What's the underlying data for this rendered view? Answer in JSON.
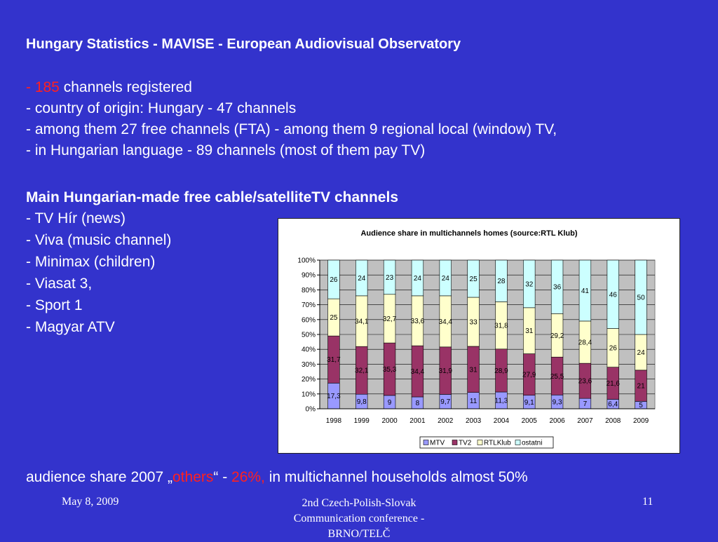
{
  "title": "Hungary Statistics - MAVISE - European Audiovisual Observatory",
  "bullets": {
    "l1_dash": "- ",
    "l1_num": "185",
    "l1_rest": " channels registered",
    "l2": "- country of origin: Hungary - 47 channels",
    "l3": "- among them 27 free channels (FTA) - among them 9 regional local (window) TV,",
    "l4": "- in Hungarian language - 89 channels (most of them pay TV)"
  },
  "channels": {
    "heading": "Main Hungarian-made free cable/satelliteTV channels",
    "items": [
      "- TV Hír (news)",
      "- Viva (music channel)",
      "- Minimax (children)",
      "- Viasat 3,",
      "- Sport 1",
      "- Magyar ATV"
    ]
  },
  "summary": {
    "prefix": "audience share 2007  „",
    "others": "others",
    "mid": "“ - ",
    "pct": "26%,",
    "suffix": " in multichannel households almost 50%"
  },
  "footer": {
    "date": "May 8, 2009",
    "conference": "2nd Czech-Polish-Slovak Communication conference - BRNO/TELČ",
    "page": "11"
  },
  "colors": {
    "background": "#3333cc",
    "MTV": "#9999ff",
    "TV2": "#993366",
    "RTLKlub": "#ffffcc",
    "ostatni": "#ccffff",
    "plot_bg": "#c0c0c0"
  },
  "chart_data": {
    "type": "bar",
    "stacked": "percent",
    "title": "Audience share in multichannels homes (source:RTL Klub)",
    "categories": [
      "1998",
      "1999",
      "2000",
      "2001",
      "2002",
      "2003",
      "2004",
      "2005",
      "2006",
      "2007",
      "2008",
      "2009"
    ],
    "y_ticks": [
      "0%",
      "10%",
      "20%",
      "30%",
      "40%",
      "50%",
      "60%",
      "70%",
      "80%",
      "90%",
      "100%"
    ],
    "ylim": [
      0,
      100
    ],
    "legend_position": "bottom",
    "series": [
      {
        "name": "MTV",
        "values": [
          17.3,
          9.8,
          9,
          8,
          9.7,
          11,
          11.3,
          9.1,
          9.3,
          7,
          6.4,
          5
        ],
        "labels": [
          "17,3",
          "9,8",
          "9",
          "8",
          "9,7",
          "11",
          "11,3",
          "9,1",
          "9,3",
          "7",
          "6,4",
          "5"
        ]
      },
      {
        "name": "TV2",
        "values": [
          31.7,
          32.1,
          35.3,
          34.4,
          31.9,
          31,
          28.9,
          27.9,
          25.5,
          23.6,
          21.6,
          21
        ],
        "labels": [
          "31,7",
          "32,1",
          "35,3",
          "34,4",
          "31,9",
          "31",
          "28,9",
          "27,9",
          "25,5",
          "23,6",
          "21,6",
          "21"
        ]
      },
      {
        "name": "RTLKlub",
        "values": [
          25,
          34.1,
          32.7,
          33.6,
          34.4,
          33,
          31.8,
          31,
          29.2,
          28.4,
          26,
          24
        ],
        "labels": [
          "25",
          "34,1",
          "32,7",
          "33,6",
          "34,4",
          "33",
          "31,8",
          "31",
          "29,2",
          "28,4",
          "26",
          "24"
        ]
      },
      {
        "name": "ostatni",
        "values": [
          26,
          24,
          23,
          24,
          24,
          25,
          28,
          32,
          36,
          41,
          46,
          50
        ],
        "labels": [
          "26",
          "24",
          "23",
          "24",
          "24",
          "25",
          "28",
          "32",
          "36",
          "41",
          "46",
          "50"
        ]
      }
    ]
  }
}
